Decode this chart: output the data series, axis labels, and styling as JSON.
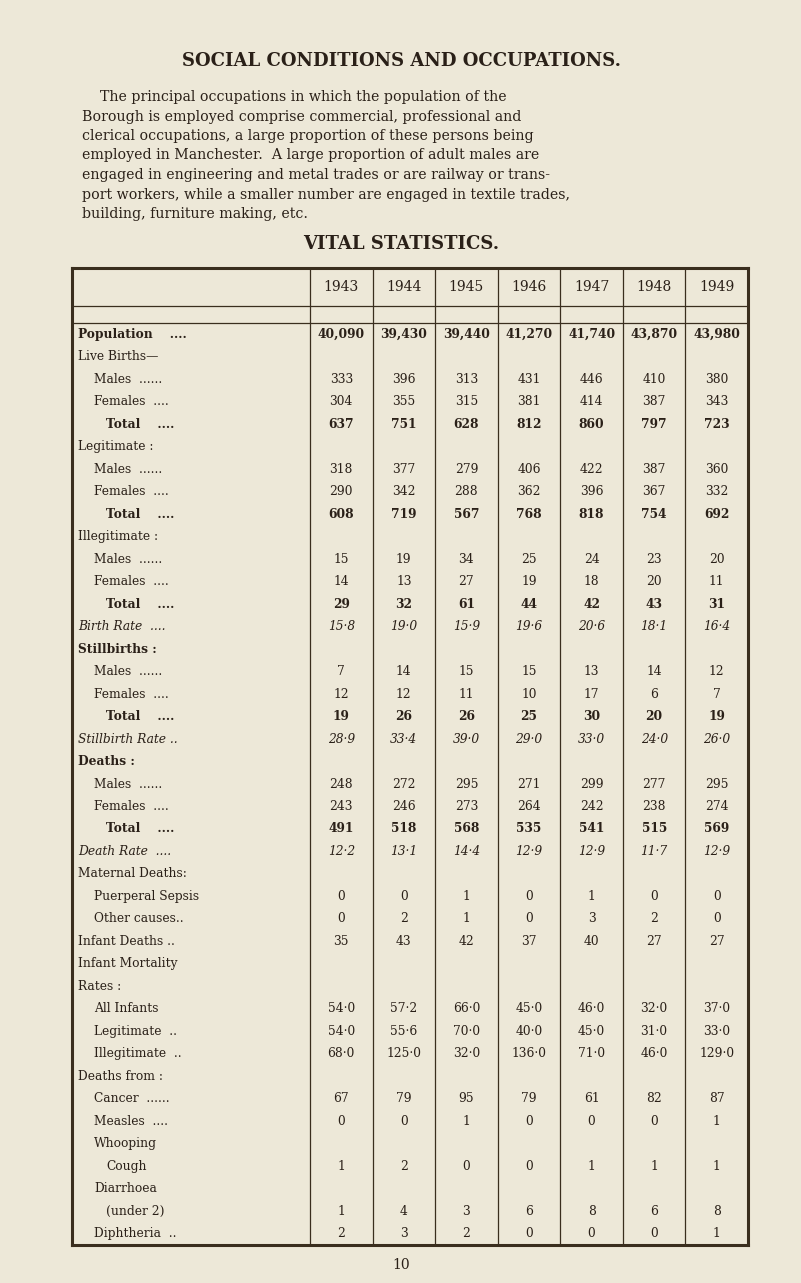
{
  "bg_color": "#ede8d8",
  "text_color": "#2a2018",
  "title": "SOCIAL CONDITIONS AND OCCUPATIONS.",
  "para_lines": [
    "    The principal occupations in which the population of the",
    "Borough is employed comprise commercial, professional and",
    "clerical occupations, a large proportion of these persons being",
    "employed in Manchester.  A large proportion of adult males are",
    "engaged in engineering and metal trades or are railway or trans-",
    "port workers, while a smaller number are engaged in textile trades,",
    "building, furniture making, etc."
  ],
  "table_title": "VITAL STATISTICS.",
  "years": [
    "1943",
    "1944",
    "1945",
    "1946",
    "1947",
    "1948",
    "1949"
  ],
  "page_number": "10",
  "rows": [
    {
      "label": "Population    ....",
      "indent": 0,
      "bold": true,
      "italic": false,
      "values": [
        "40,090",
        "39,430",
        "39,440",
        "41,270",
        "41,740",
        "43,870",
        "43,980"
      ]
    },
    {
      "label": "Live Births—",
      "indent": 0,
      "bold": false,
      "italic": false,
      "values": [
        "",
        "",
        "",
        "",
        "",
        "",
        ""
      ]
    },
    {
      "label": "Males  ......",
      "indent": 1,
      "bold": false,
      "italic": false,
      "values": [
        "333",
        "396",
        "313",
        "431",
        "446",
        "410",
        "380"
      ]
    },
    {
      "label": "Females  ....",
      "indent": 1,
      "bold": false,
      "italic": false,
      "values": [
        "304",
        "355",
        "315",
        "381",
        "414",
        "387",
        "343"
      ]
    },
    {
      "label": "Total    ....",
      "indent": 2,
      "bold": true,
      "italic": false,
      "values": [
        "637",
        "751",
        "628",
        "812",
        "860",
        "797",
        "723"
      ]
    },
    {
      "label": "Legitimate :",
      "indent": 0,
      "bold": false,
      "italic": false,
      "values": [
        "",
        "",
        "",
        "",
        "",
        "",
        ""
      ]
    },
    {
      "label": "Males  ......",
      "indent": 1,
      "bold": false,
      "italic": false,
      "values": [
        "318",
        "377",
        "279",
        "406",
        "422",
        "387",
        "360"
      ]
    },
    {
      "label": "Females  ....",
      "indent": 1,
      "bold": false,
      "italic": false,
      "values": [
        "290",
        "342",
        "288",
        "362",
        "396",
        "367",
        "332"
      ]
    },
    {
      "label": "Total    ....",
      "indent": 2,
      "bold": true,
      "italic": false,
      "values": [
        "608",
        "719",
        "567",
        "768",
        "818",
        "754",
        "692"
      ]
    },
    {
      "label": "Illegitimate :",
      "indent": 0,
      "bold": false,
      "italic": false,
      "values": [
        "",
        "",
        "",
        "",
        "",
        "",
        ""
      ]
    },
    {
      "label": "Males  ......",
      "indent": 1,
      "bold": false,
      "italic": false,
      "values": [
        "15",
        "19",
        "34",
        "25",
        "24",
        "23",
        "20"
      ]
    },
    {
      "label": "Females  ....",
      "indent": 1,
      "bold": false,
      "italic": false,
      "values": [
        "14",
        "13",
        "27",
        "19",
        "18",
        "20",
        "11"
      ]
    },
    {
      "label": "Total    ....",
      "indent": 2,
      "bold": true,
      "italic": false,
      "values": [
        "29",
        "32",
        "61",
        "44",
        "42",
        "43",
        "31"
      ]
    },
    {
      "label": "Birth Rate  ....",
      "indent": 0,
      "bold": false,
      "italic": true,
      "values": [
        "15·8",
        "19·0",
        "15·9",
        "19·6",
        "20·6",
        "18·1",
        "16·4"
      ]
    },
    {
      "label": "Stillbirths :",
      "indent": 0,
      "bold": true,
      "italic": false,
      "values": [
        "",
        "",
        "",
        "",
        "",
        "",
        ""
      ]
    },
    {
      "label": "Males  ......",
      "indent": 1,
      "bold": false,
      "italic": false,
      "values": [
        "7",
        "14",
        "15",
        "15",
        "13",
        "14",
        "12"
      ]
    },
    {
      "label": "Females  ....",
      "indent": 1,
      "bold": false,
      "italic": false,
      "values": [
        "12",
        "12",
        "11",
        "10",
        "17",
        "6",
        "7"
      ]
    },
    {
      "label": "Total    ....",
      "indent": 2,
      "bold": true,
      "italic": false,
      "values": [
        "19",
        "26",
        "26",
        "25",
        "30",
        "20",
        "19"
      ]
    },
    {
      "label": "Stillbirth Rate ..",
      "indent": 0,
      "bold": false,
      "italic": true,
      "values": [
        "28·9",
        "33·4",
        "39·0",
        "29·0",
        "33·0",
        "24·0",
        "26·0"
      ]
    },
    {
      "label": "Deaths :",
      "indent": 0,
      "bold": true,
      "italic": false,
      "values": [
        "",
        "",
        "",
        "",
        "",
        "",
        ""
      ]
    },
    {
      "label": "Males  ......",
      "indent": 1,
      "bold": false,
      "italic": false,
      "values": [
        "248",
        "272",
        "295",
        "271",
        "299",
        "277",
        "295"
      ]
    },
    {
      "label": "Females  ....",
      "indent": 1,
      "bold": false,
      "italic": false,
      "values": [
        "243",
        "246",
        "273",
        "264",
        "242",
        "238",
        "274"
      ]
    },
    {
      "label": "Total    ....",
      "indent": 2,
      "bold": true,
      "italic": false,
      "values": [
        "491",
        "518",
        "568",
        "535",
        "541",
        "515",
        "569"
      ]
    },
    {
      "label": "Death Rate  ....",
      "indent": 0,
      "bold": false,
      "italic": true,
      "values": [
        "12·2",
        "13·1",
        "14·4",
        "12·9",
        "12·9",
        "11·7",
        "12·9"
      ]
    },
    {
      "label": "Maternal Deaths:",
      "indent": 0,
      "bold": false,
      "italic": false,
      "values": [
        "",
        "",
        "",
        "",
        "",
        "",
        ""
      ]
    },
    {
      "label": "Puerperal Sepsis",
      "indent": 1,
      "bold": false,
      "italic": false,
      "values": [
        "0",
        "0",
        "1",
        "0",
        "1",
        "0",
        "0"
      ]
    },
    {
      "label": "Other causes..",
      "indent": 1,
      "bold": false,
      "italic": false,
      "values": [
        "0",
        "2",
        "1",
        "0",
        "3",
        "2",
        "0"
      ]
    },
    {
      "label": "Infant Deaths ..",
      "indent": 0,
      "bold": false,
      "italic": false,
      "values": [
        "35",
        "43",
        "42",
        "37",
        "40",
        "27",
        "27"
      ]
    },
    {
      "label": "Infant Mortality",
      "indent": 0,
      "bold": false,
      "italic": false,
      "values": [
        "",
        "",
        "",
        "",
        "",
        "",
        ""
      ]
    },
    {
      "label": "Rates :",
      "indent": 0,
      "bold": false,
      "italic": false,
      "values": [
        "",
        "",
        "",
        "",
        "",
        "",
        ""
      ]
    },
    {
      "label": "All Infants",
      "indent": 1,
      "bold": false,
      "italic": false,
      "values": [
        "54·0",
        "57·2",
        "66·0",
        "45·0",
        "46·0",
        "32·0",
        "37·0"
      ]
    },
    {
      "label": "Legitimate  ..",
      "indent": 1,
      "bold": false,
      "italic": false,
      "values": [
        "54·0",
        "55·6",
        "70·0",
        "40·0",
        "45·0",
        "31·0",
        "33·0"
      ]
    },
    {
      "label": "Illegitimate  ..",
      "indent": 1,
      "bold": false,
      "italic": false,
      "values": [
        "68·0",
        "125·0",
        "32·0",
        "136·0",
        "71·0",
        "46·0",
        "129·0"
      ]
    },
    {
      "label": "Deaths from :",
      "indent": 0,
      "bold": false,
      "italic": false,
      "values": [
        "",
        "",
        "",
        "",
        "",
        "",
        ""
      ]
    },
    {
      "label": "Cancer  ......",
      "indent": 1,
      "bold": false,
      "italic": false,
      "values": [
        "67",
        "79",
        "95",
        "79",
        "61",
        "82",
        "87"
      ]
    },
    {
      "label": "Measles  ....",
      "indent": 1,
      "bold": false,
      "italic": false,
      "values": [
        "0",
        "0",
        "1",
        "0",
        "0",
        "0",
        "1"
      ]
    },
    {
      "label": "Whooping",
      "indent": 1,
      "bold": false,
      "italic": false,
      "values": [
        "",
        "",
        "",
        "",
        "",
        "",
        ""
      ]
    },
    {
      "label": "Cough",
      "indent": 2,
      "bold": false,
      "italic": false,
      "values": [
        "1",
        "2",
        "0",
        "0",
        "1",
        "1",
        "1"
      ]
    },
    {
      "label": "Diarrhoea",
      "indent": 1,
      "bold": false,
      "italic": false,
      "values": [
        "",
        "",
        "",
        "",
        "",
        "",
        ""
      ]
    },
    {
      "label": "(under 2)",
      "indent": 2,
      "bold": false,
      "italic": false,
      "values": [
        "1",
        "4",
        "3",
        "6",
        "8",
        "6",
        "8"
      ]
    },
    {
      "label": "Diphtheria  ..",
      "indent": 1,
      "bold": false,
      "italic": false,
      "values": [
        "2",
        "3",
        "2",
        "0",
        "0",
        "0",
        "1"
      ]
    }
  ]
}
